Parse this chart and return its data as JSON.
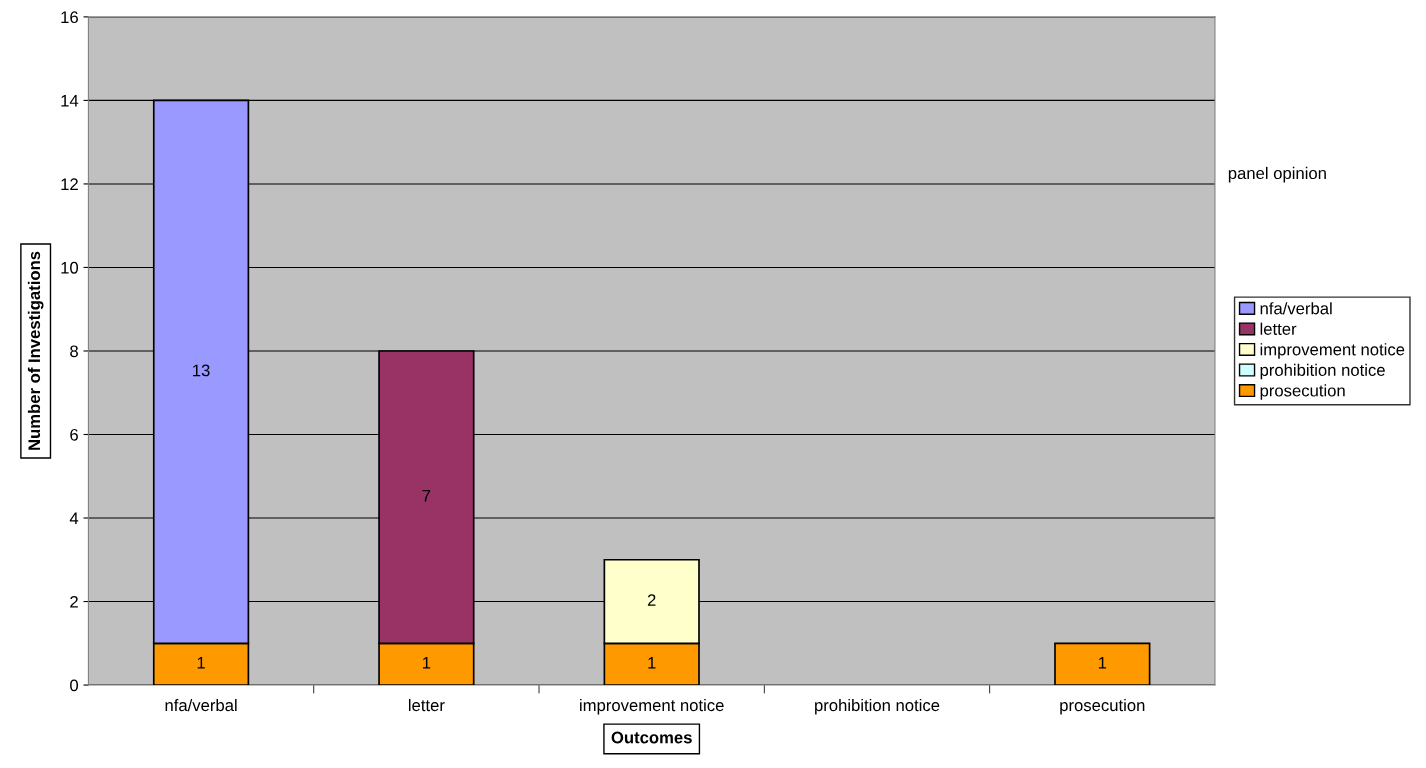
{
  "chart_data": {
    "type": "bar",
    "stacked": true,
    "xlabel": "Outcomes",
    "ylabel": "Number of Investigations",
    "legend_title": "panel opinion",
    "categories": [
      "nfa/verbal",
      "letter",
      "improvement notice",
      "prohibition notice",
      "prosecution"
    ],
    "series": [
      {
        "name": "prosecution",
        "color": "#ff9900",
        "values": [
          1,
          1,
          1,
          null,
          1
        ]
      },
      {
        "name": "prohibition notice",
        "color": "#ccffff",
        "values": [
          null,
          null,
          null,
          null,
          null
        ]
      },
      {
        "name": "improvement notice",
        "color": "#ffffcc",
        "values": [
          null,
          null,
          2,
          null,
          null
        ]
      },
      {
        "name": "letter",
        "color": "#993366",
        "values": [
          null,
          7,
          null,
          null,
          null
        ]
      },
      {
        "name": "nfa/verbal",
        "color": "#9999ff",
        "values": [
          13,
          null,
          null,
          null,
          null
        ]
      }
    ],
    "ylim": [
      0,
      16
    ],
    "yticks": [
      0,
      2,
      4,
      6,
      8,
      10,
      12,
      14,
      16
    ],
    "grid": "y",
    "legend": "right",
    "data_labels": true
  }
}
